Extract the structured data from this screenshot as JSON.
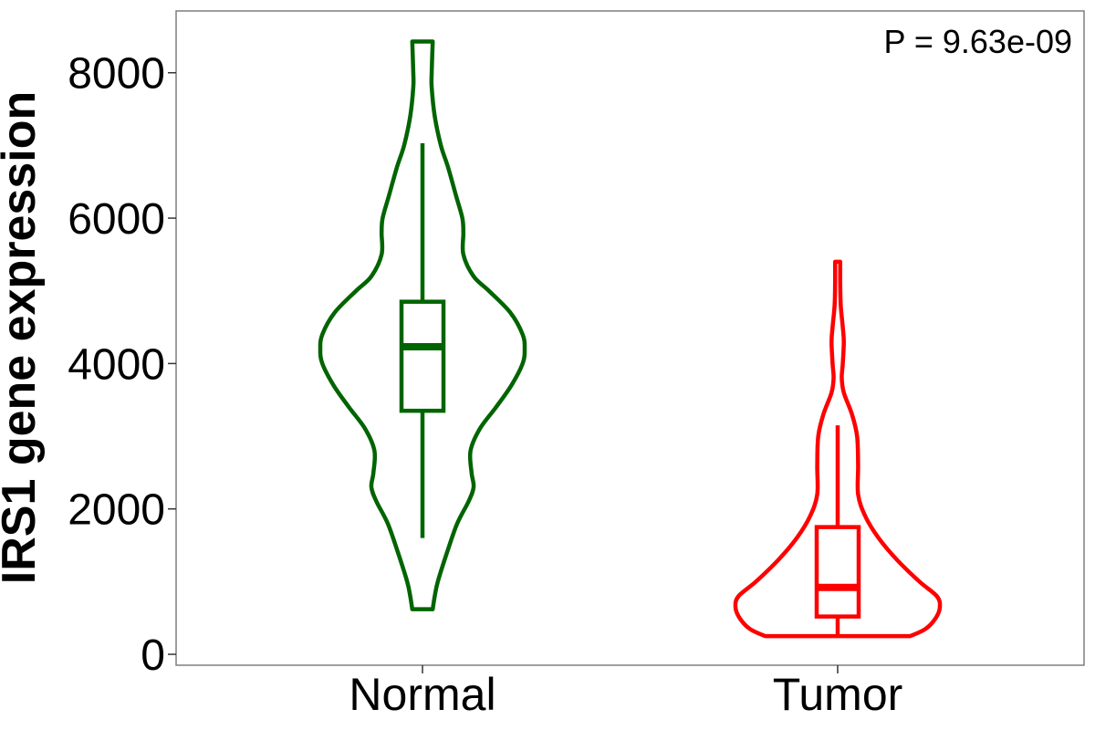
{
  "chart_data": {
    "type": "violin",
    "ylabel": "IRS1 gene expression",
    "xlabel": "",
    "ylim": [
      -150,
      8850
    ],
    "yticks": [
      0,
      2000,
      4000,
      6000,
      8000
    ],
    "ytick_labels": [
      "0",
      "2000",
      "4000",
      "6000",
      "8000"
    ],
    "categories": [
      "Normal",
      "Tumor"
    ],
    "annotation": "P = 9.63e-09",
    "legend": "none",
    "grid": false,
    "series": [
      {
        "category": "Normal",
        "color": "#006400",
        "min": 1600,
        "q1": 3350,
        "median": 4230,
        "q3": 4850,
        "max": 7030,
        "density": [
          [
            620,
            0.1
          ],
          [
            800,
            0.12
          ],
          [
            1000,
            0.15
          ],
          [
            1400,
            0.24
          ],
          [
            1800,
            0.34
          ],
          [
            2100,
            0.45
          ],
          [
            2300,
            0.5
          ],
          [
            2500,
            0.48
          ],
          [
            2800,
            0.47
          ],
          [
            3100,
            0.56
          ],
          [
            3400,
            0.72
          ],
          [
            3700,
            0.87
          ],
          [
            4000,
            0.98
          ],
          [
            4200,
            1.0
          ],
          [
            4400,
            0.98
          ],
          [
            4700,
            0.86
          ],
          [
            5000,
            0.65
          ],
          [
            5200,
            0.5
          ],
          [
            5500,
            0.4
          ],
          [
            5800,
            0.4
          ],
          [
            6000,
            0.39
          ],
          [
            6300,
            0.33
          ],
          [
            6700,
            0.25
          ],
          [
            7000,
            0.18
          ],
          [
            7400,
            0.12
          ],
          [
            7800,
            0.09
          ],
          [
            8000,
            0.09
          ],
          [
            8430,
            0.1
          ]
        ]
      },
      {
        "category": "Tumor",
        "color": "#ff0000",
        "min": 250,
        "q1": 520,
        "median": 920,
        "q3": 1750,
        "max": 3150,
        "density": [
          [
            250,
            0.71
          ],
          [
            350,
            0.86
          ],
          [
            500,
            0.96
          ],
          [
            650,
            1.0
          ],
          [
            800,
            0.97
          ],
          [
            1000,
            0.8
          ],
          [
            1300,
            0.58
          ],
          [
            1600,
            0.4
          ],
          [
            1900,
            0.27
          ],
          [
            2200,
            0.2
          ],
          [
            2600,
            0.2
          ],
          [
            3000,
            0.19
          ],
          [
            3300,
            0.14
          ],
          [
            3600,
            0.06
          ],
          [
            3800,
            0.04
          ],
          [
            4000,
            0.05
          ],
          [
            4300,
            0.06
          ],
          [
            4500,
            0.05
          ],
          [
            4800,
            0.03
          ],
          [
            5100,
            0.025
          ],
          [
            5400,
            0.025
          ]
        ]
      }
    ]
  }
}
